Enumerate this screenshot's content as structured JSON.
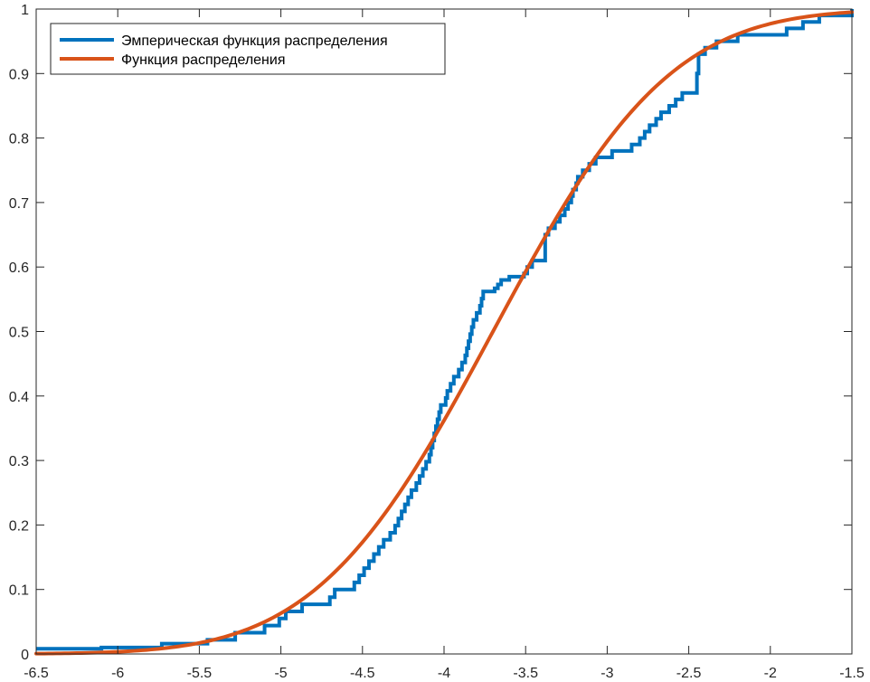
{
  "chart_data": {
    "type": "line",
    "title": "",
    "xlabel": "",
    "ylabel": "",
    "xlim": [
      -6.5,
      -1.5
    ],
    "ylim": [
      0,
      1
    ],
    "x_ticks": [
      -6.5,
      -6,
      -5.5,
      -5,
      -4.5,
      -4,
      -3.5,
      -3,
      -2.5,
      -2,
      -1.5
    ],
    "x_tick_labels": [
      "-6.5",
      "-6",
      "-5.5",
      "-5",
      "-4.5",
      "-4",
      "-3.5",
      "-3",
      "-2.5",
      "-2",
      "-1.5"
    ],
    "y_ticks": [
      0,
      0.1,
      0.2,
      0.3,
      0.4,
      0.5,
      0.6,
      0.7,
      0.8,
      0.9,
      1
    ],
    "y_tick_labels": [
      "0",
      "0.1",
      "0.2",
      "0.3",
      "0.4",
      "0.5",
      "0.6",
      "0.7",
      "0.8",
      "0.9",
      "1"
    ],
    "grid": false,
    "legend_position": "top-left",
    "series": [
      {
        "name": "Эмперическая функция распределения",
        "style": "stairs",
        "color": "#0072BD",
        "x": [
          -6.5,
          -6.1,
          -5.73,
          -5.5,
          -5.45,
          -5.28,
          -5.1,
          -5.01,
          -4.97,
          -4.87,
          -4.7,
          -4.67,
          -4.62,
          -4.55,
          -4.52,
          -4.49,
          -4.46,
          -4.43,
          -4.4,
          -4.37,
          -4.33,
          -4.3,
          -4.28,
          -4.26,
          -4.24,
          -4.22,
          -4.2,
          -4.17,
          -4.15,
          -4.13,
          -4.11,
          -4.09,
          -4.08,
          -4.07,
          -4.06,
          -4.05,
          -4.04,
          -4.03,
          -4.02,
          -3.99,
          -3.98,
          -3.96,
          -3.94,
          -3.92,
          -3.91,
          -3.89,
          -3.87,
          -3.86,
          -3.85,
          -3.84,
          -3.83,
          -3.82,
          -3.8,
          -3.78,
          -3.77,
          -3.76,
          -3.74,
          -3.73,
          -3.71,
          -3.69,
          -3.67,
          -3.65,
          -3.6,
          -3.51,
          -3.49,
          -3.46,
          -3.38,
          -3.36,
          -3.32,
          -3.29,
          -3.26,
          -3.24,
          -3.22,
          -3.21,
          -3.19,
          -3.18,
          -3.15,
          -3.11,
          -3.07,
          -2.97,
          -2.85,
          -2.8,
          -2.77,
          -2.74,
          -2.7,
          -2.67,
          -2.62,
          -2.58,
          -2.54,
          -2.45,
          -2.44,
          -2.4,
          -2.33,
          -2.27,
          -2.2,
          -2.1,
          -1.9,
          -1.8,
          -1.7,
          -1.5
        ],
        "y": [
          0.008,
          0.01,
          0.016,
          0.016,
          0.022,
          0.033,
          0.044,
          0.055,
          0.066,
          0.077,
          0.088,
          0.1,
          0.1,
          0.111,
          0.122,
          0.133,
          0.144,
          0.155,
          0.166,
          0.177,
          0.188,
          0.199,
          0.21,
          0.221,
          0.232,
          0.243,
          0.254,
          0.265,
          0.276,
          0.287,
          0.298,
          0.309,
          0.32,
          0.331,
          0.342,
          0.353,
          0.364,
          0.375,
          0.386,
          0.397,
          0.408,
          0.419,
          0.43,
          0.43,
          0.441,
          0.452,
          0.463,
          0.474,
          0.485,
          0.496,
          0.507,
          0.518,
          0.529,
          0.54,
          0.551,
          0.562,
          0.562,
          0.562,
          0.562,
          0.567,
          0.573,
          0.58,
          0.585,
          0.59,
          0.6,
          0.61,
          0.65,
          0.66,
          0.67,
          0.68,
          0.69,
          0.7,
          0.71,
          0.72,
          0.73,
          0.74,
          0.75,
          0.76,
          0.77,
          0.78,
          0.79,
          0.8,
          0.81,
          0.82,
          0.83,
          0.84,
          0.85,
          0.86,
          0.87,
          0.9,
          0.93,
          0.94,
          0.95,
          0.95,
          0.96,
          0.96,
          0.97,
          0.98,
          0.99,
          1.0
        ]
      },
      {
        "name": "Функция распределения",
        "style": "line",
        "color": "#D95319",
        "distribution": "normal",
        "mean": -3.7,
        "std": 0.85
      }
    ]
  }
}
